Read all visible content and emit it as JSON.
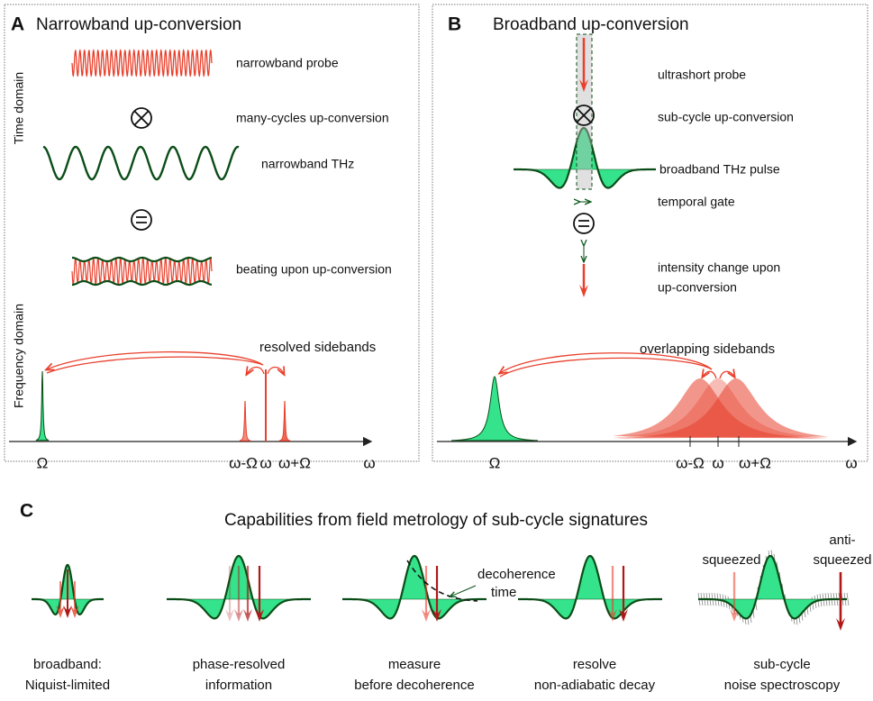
{
  "panel_a": {
    "letter": "A",
    "title": "Narrowband up-conversion",
    "time_axis": "Time domain",
    "freq_axis": "Frequency domain",
    "labels": [
      "narrowband probe",
      "many-cycles up-conversion",
      "narrowband THz",
      "beating upon up-conversion"
    ],
    "sidebands": "resolved sidebands",
    "ticks": [
      "Ω",
      "ω-Ω",
      "ω",
      "ω+Ω",
      "ω"
    ]
  },
  "panel_b": {
    "letter": "B",
    "title": "Broadband up-conversion",
    "labels": [
      "ultrashort probe",
      "sub-cycle up-conversion",
      "broadband THz pulse",
      "temporal gate",
      "intensity change upon",
      "up-conversion"
    ],
    "sidebands": "overlapping sidebands",
    "ticks": [
      "Ω",
      "ω-Ω",
      "ω",
      "ω+Ω",
      "ω"
    ]
  },
  "panel_c": {
    "letter": "C",
    "title": "Capabilities from field metrology of sub-cycle signatures",
    "captions": [
      [
        "broadband:",
        "Niquist-limited"
      ],
      [
        "phase-resolved",
        "information"
      ],
      [
        "measure",
        "before decoherence"
      ],
      [
        "resolve",
        "non-adiabatic decay"
      ],
      [
        "sub-cycle",
        "noise spectroscopy"
      ]
    ],
    "annotations": [
      "decoherence",
      "time",
      "squeezed",
      "anti-",
      "squeezed"
    ]
  }
}
